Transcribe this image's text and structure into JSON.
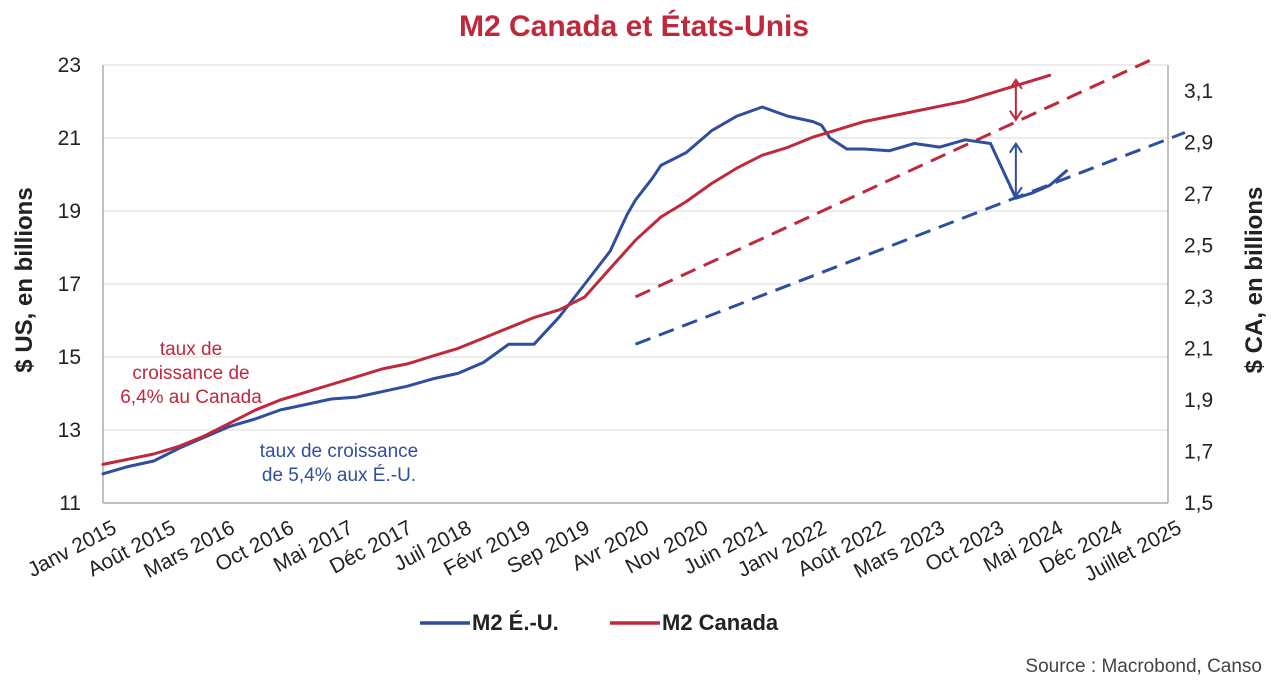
{
  "chart_data": {
    "type": "line",
    "title": "M2 Canada et États-Unis",
    "ylabel_left": "$ US, en billions",
    "ylabel_right": "$ CA, en billions",
    "source": "Source : Macrobond, Canso",
    "x_tick_labels": [
      "Janv 2015",
      "Août 2015",
      "Mars 2016",
      "Oct 2016",
      "Mai 2017",
      "Déc 2017",
      "Juil 2018",
      "Févr 2019",
      "Sep 2019",
      "Avr 2020",
      "Nov 2020",
      "Juin 2021",
      "Janv 2022",
      "Août 2022",
      "Mars 2023",
      "Oct 2023",
      "Mai 2024",
      "Déc 2024",
      "Juillet 2025"
    ],
    "y_left": {
      "min": 11,
      "max": 23,
      "ticks": [
        "11",
        "13",
        "15",
        "17",
        "19",
        "21",
        "23"
      ]
    },
    "y_right": {
      "min": 1.5,
      "max": 3.2,
      "ticks": [
        "1,5",
        "1,7",
        "1,9",
        "2,1",
        "2,3",
        "2,5",
        "2,7",
        "2,9",
        "3,1"
      ]
    },
    "grid": "horizontal",
    "legend_position": "bottom",
    "colors": {
      "us": "#2f4f9e",
      "ca": "#c0283c",
      "title": "#c0283c",
      "grid": "#d9d9d9"
    },
    "series": [
      {
        "name": "M2 É.-U.",
        "axis": "left",
        "color": "#2f4f9e",
        "month_index": [
          0,
          3,
          6,
          9,
          12,
          15,
          18,
          21,
          24,
          27,
          30,
          33,
          36,
          39,
          42,
          45,
          48,
          51,
          54,
          57,
          60,
          61,
          62,
          63,
          64,
          65,
          66,
          69,
          72,
          75,
          78,
          81,
          84,
          85,
          86,
          87,
          88,
          90,
          93,
          96,
          99,
          102,
          105,
          108,
          110,
          112,
          113,
          114
        ],
        "values": [
          11.8,
          12.0,
          12.15,
          12.5,
          12.8,
          13.1,
          13.3,
          13.55,
          13.7,
          13.85,
          13.9,
          14.05,
          14.2,
          14.4,
          14.55,
          14.85,
          15.35,
          15.35,
          16.1,
          17.0,
          17.9,
          18.4,
          18.9,
          19.3,
          19.6,
          19.9,
          20.25,
          20.6,
          21.2,
          21.6,
          21.85,
          21.6,
          21.45,
          21.35,
          21.0,
          20.85,
          20.7,
          20.7,
          20.65,
          20.85,
          20.75,
          20.95,
          20.85,
          19.35,
          19.5,
          19.7,
          19.9,
          20.1
        ]
      },
      {
        "name": "M2 Canada",
        "axis": "right",
        "color": "#c0283c",
        "month_index": [
          0,
          3,
          6,
          9,
          12,
          15,
          18,
          21,
          24,
          27,
          30,
          33,
          36,
          39,
          42,
          45,
          48,
          51,
          54,
          57,
          60,
          63,
          66,
          69,
          72,
          75,
          78,
          81,
          84,
          87,
          90,
          93,
          96,
          99,
          102,
          105,
          108,
          111,
          112
        ],
        "values": [
          1.65,
          1.67,
          1.69,
          1.72,
          1.76,
          1.81,
          1.86,
          1.9,
          1.93,
          1.96,
          1.99,
          2.02,
          2.04,
          2.07,
          2.1,
          2.14,
          2.18,
          2.22,
          2.25,
          2.3,
          2.41,
          2.52,
          2.61,
          2.67,
          2.74,
          2.8,
          2.85,
          2.88,
          2.92,
          2.95,
          2.98,
          3.0,
          3.02,
          3.04,
          3.06,
          3.09,
          3.12,
          3.15,
          3.16
        ]
      }
    ],
    "trend_lines": [
      {
        "series": "M2 É.-U.",
        "axis": "left",
        "from": [
          63,
          15.35
        ],
        "to": [
          128,
          21.15
        ]
      },
      {
        "series": "M2 Canada",
        "axis": "right",
        "from": [
          63,
          2.3
        ],
        "to": [
          124,
          3.22
        ]
      }
    ],
    "arrows": [
      {
        "series": "M2 É.-U.",
        "axis": "left",
        "month_index": 108,
        "from": 20.9,
        "to": 19.35
      },
      {
        "series": "M2 Canada",
        "axis": "right",
        "month_index": 108,
        "from": 3.15,
        "to": 2.98
      }
    ],
    "annotations": [
      {
        "series": "M2 Canada",
        "color": "#c0283c",
        "lines": [
          "taux de",
          "croissance de",
          "6,4% au Canada"
        ]
      },
      {
        "series": "M2 É.-U.",
        "color": "#2f4f9e",
        "lines": [
          "taux de croissance",
          "de 5,4% aux É.-U."
        ]
      }
    ]
  }
}
